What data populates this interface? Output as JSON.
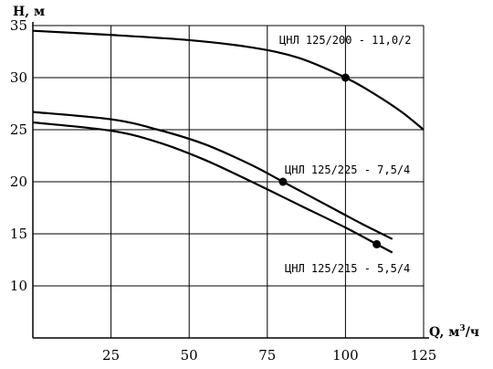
{
  "chart_data": {
    "type": "line",
    "title": "",
    "xlabel": "Q, м³/ч",
    "xlabel_main": "Q, м",
    "xlabel_sup": "3",
    "xlabel_tail": "/ч",
    "ylabel": "H, м",
    "xlim": [
      0,
      125
    ],
    "ylim": [
      5,
      35
    ],
    "xticks": [
      25,
      50,
      75,
      100,
      125
    ],
    "yticks": [
      10,
      15,
      20,
      25,
      30,
      35
    ],
    "grid": true,
    "series": [
      {
        "name": "ЦНЛ 125/200 - 11,0/2",
        "x": [
          0,
          25,
          50,
          70,
          85,
          100,
          110,
          118,
          125
        ],
        "y": [
          34.5,
          34.1,
          33.6,
          32.9,
          31.9,
          30.0,
          28.3,
          26.7,
          25.0
        ],
        "marker": {
          "x": 100,
          "y": 30
        }
      },
      {
        "name": "ЦНЛ 125/225 - 7,5/4",
        "x": [
          0,
          25,
          40,
          55,
          70,
          80,
          95,
          105,
          115
        ],
        "y": [
          26.7,
          26.0,
          25.0,
          23.6,
          21.6,
          20.0,
          17.6,
          16.0,
          14.5
        ],
        "marker": {
          "x": 80,
          "y": 20
        }
      },
      {
        "name": "ЦНЛ 125/215 - 5,5/4",
        "x": [
          0,
          25,
          40,
          55,
          70,
          85,
          100,
          110,
          115
        ],
        "y": [
          25.7,
          24.9,
          23.8,
          22.1,
          20.0,
          17.8,
          15.6,
          14.0,
          13.2
        ],
        "marker": {
          "x": 110,
          "y": 14
        }
      }
    ],
    "labels": [
      {
        "text": "ЦНЛ 125/200 - 11,0/2"
      },
      {
        "text": "ЦНЛ 125/225 - 7,5/4"
      },
      {
        "text": "ЦНЛ 125/215 - 5,5/4"
      }
    ]
  }
}
